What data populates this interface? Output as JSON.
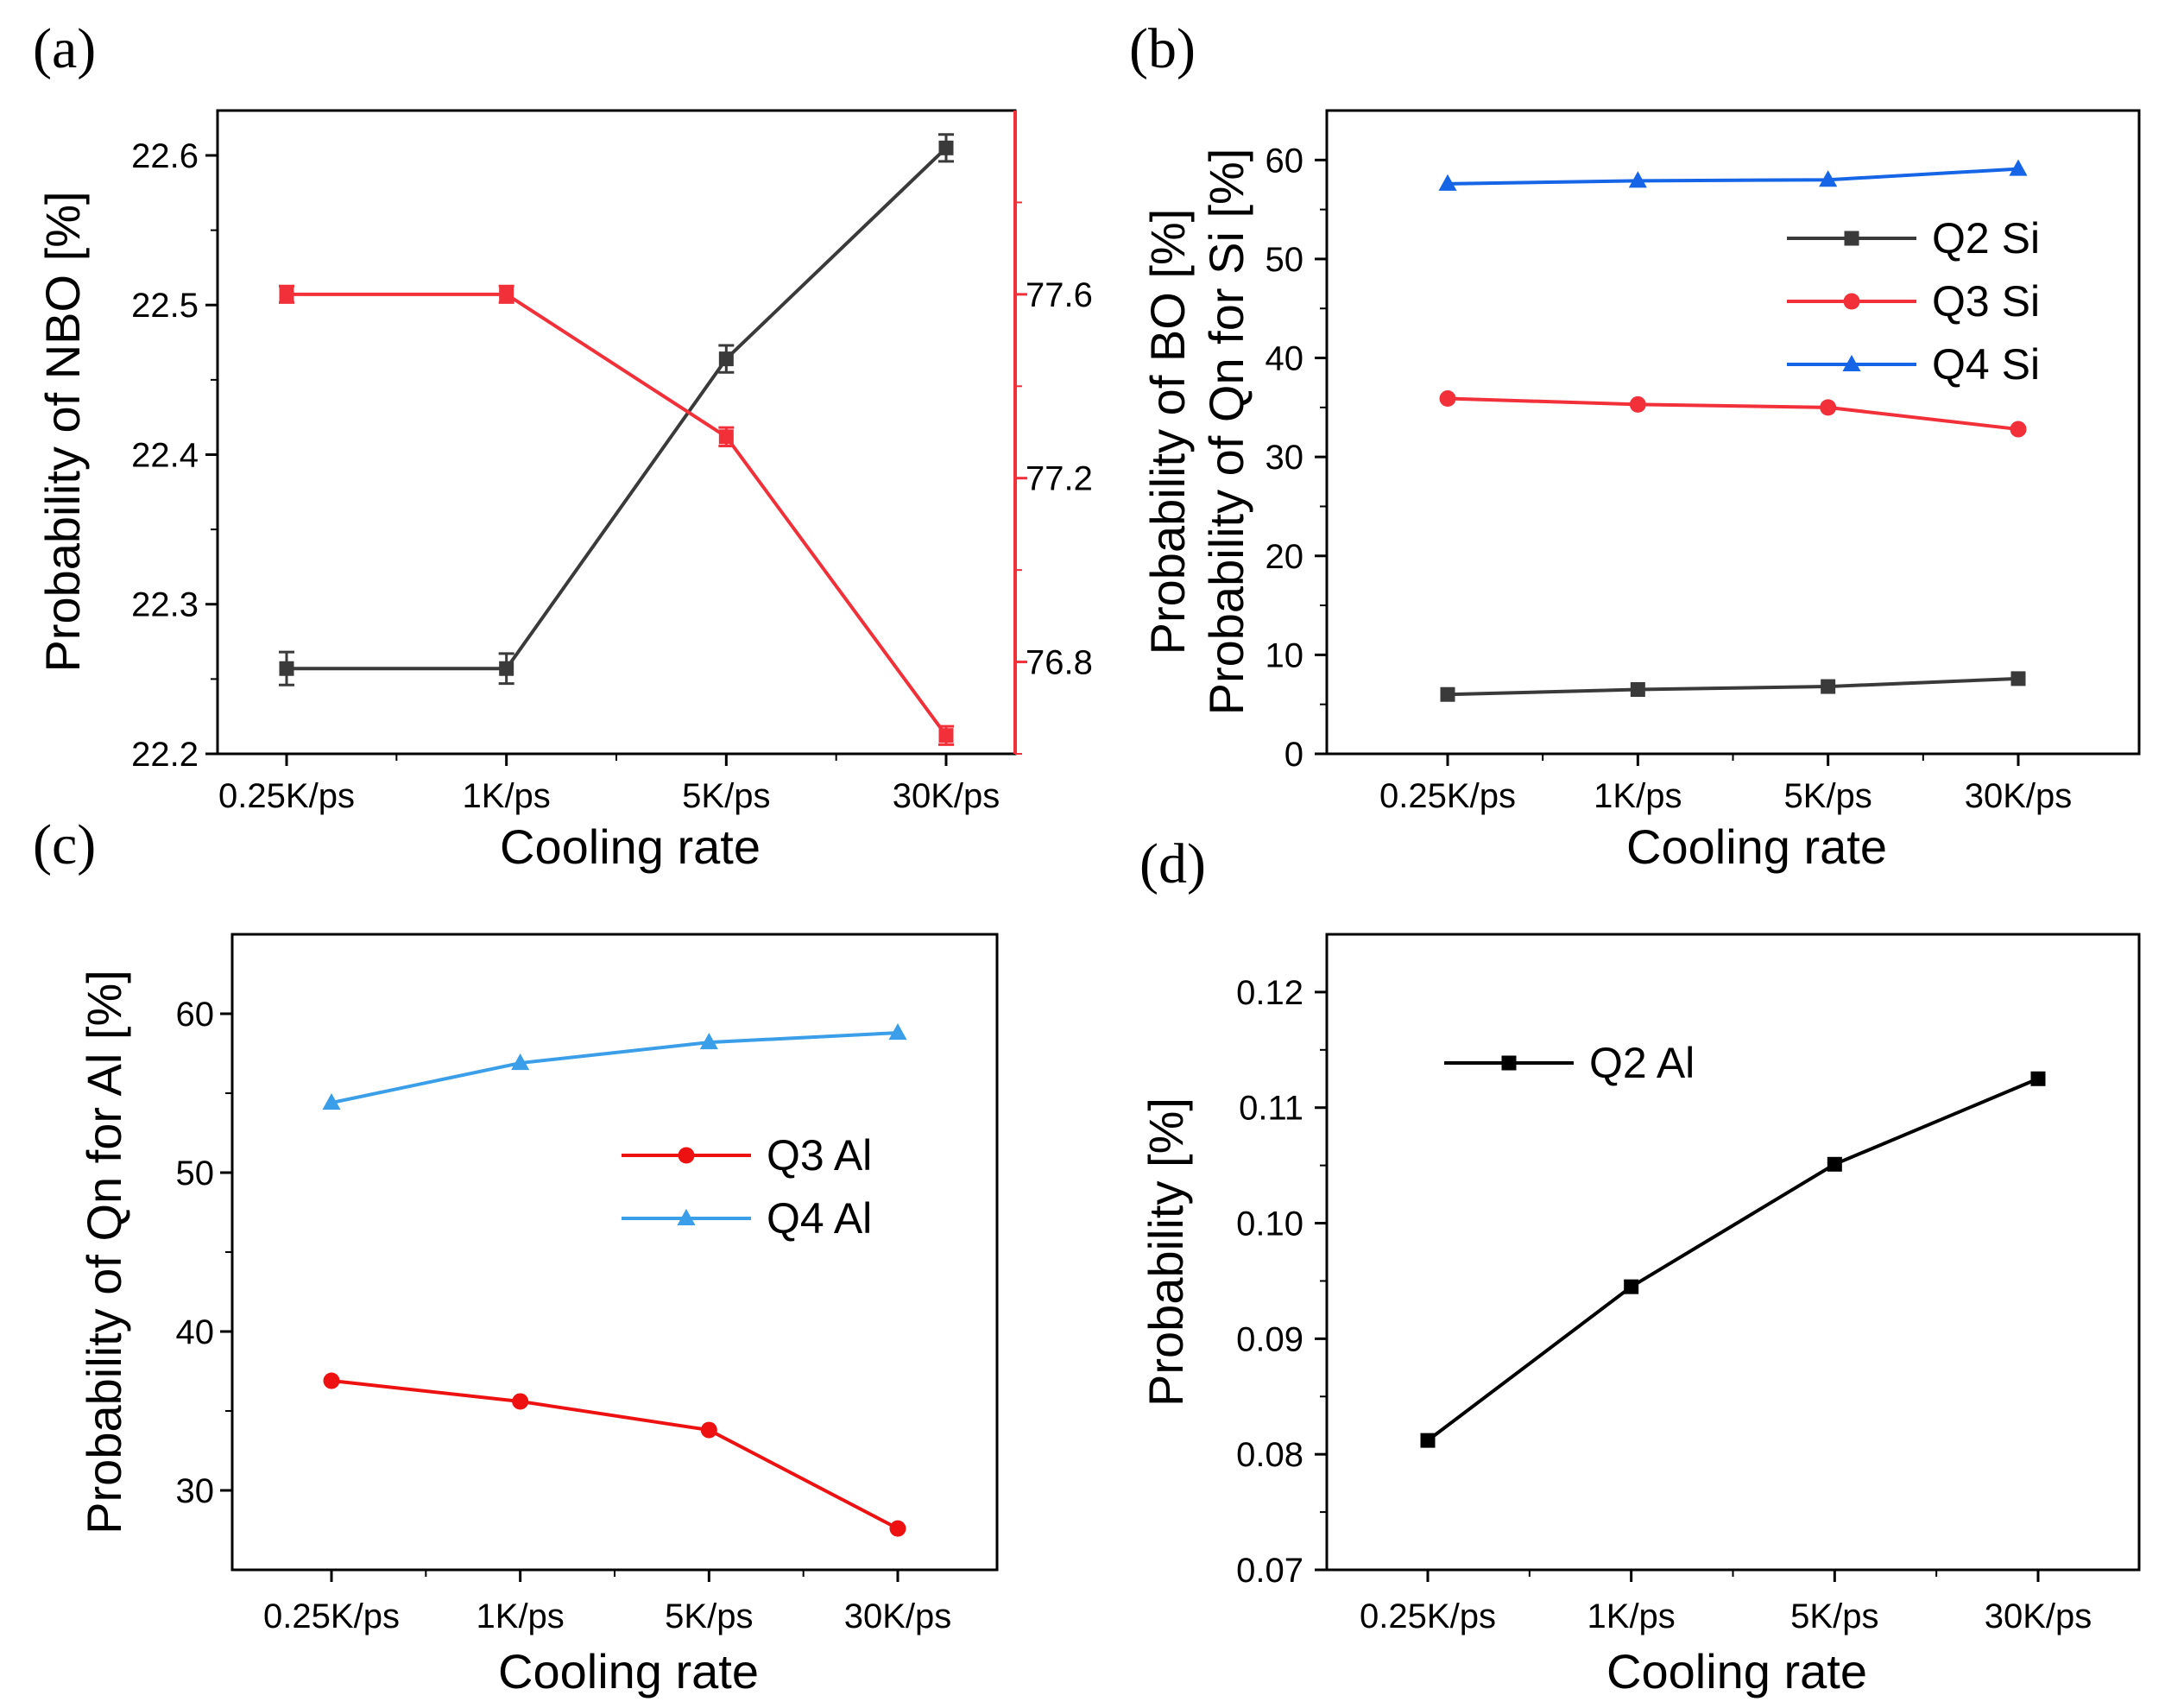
{
  "colors": {
    "black": "#000000",
    "dark_gray": "#3a3a3a",
    "red": "#f2303a",
    "red_solid": "#ee1111",
    "blue": "#1565e6",
    "light_blue": "#3a9ee8"
  },
  "chart_data": [
    {
      "type": "line",
      "panel": "(a)",
      "xlabel": "Cooling rate",
      "ylabel": "Probability of NBO [%]",
      "ylabel_right": "Probability of BO [%]",
      "categories": [
        "0.25K/ps",
        "1K/ps",
        "5K/ps",
        "30K/ps"
      ],
      "ylim": [
        22.2,
        22.63
      ],
      "yticks": [
        "22.2",
        "22.3",
        "22.4",
        "22.5",
        "22.6"
      ],
      "ylim_right": [
        76.6,
        78.0
      ],
      "yticks_right": [
        "76.8",
        "77.2",
        "77.6"
      ],
      "series": [
        {
          "name": "NBO",
          "axis": "left",
          "marker": "square",
          "color": "#3a3a3a",
          "values": [
            22.257,
            22.257,
            22.464,
            22.605
          ],
          "errors": [
            0.011,
            0.01,
            0.009,
            0.009
          ]
        },
        {
          "name": "BO",
          "axis": "right",
          "marker": "square",
          "color": "#f2303a",
          "values": [
            77.6,
            77.6,
            77.29,
            76.64
          ],
          "errors": [
            0.018,
            0.018,
            0.02,
            0.02
          ]
        }
      ]
    },
    {
      "type": "line",
      "panel": "(b)",
      "xlabel": "Cooling rate",
      "ylabel": "Probability of Qn for Si [%]",
      "categories": [
        "0.25K/ps",
        "1K/ps",
        "5K/ps",
        "30K/ps"
      ],
      "ylim": [
        0,
        65
      ],
      "yticks": [
        "0",
        "10",
        "20",
        "30",
        "40",
        "50",
        "60"
      ],
      "legend_position": "right",
      "series": [
        {
          "name": "Q2 Si",
          "marker": "square",
          "color": "#3a3a3a",
          "values": [
            6.0,
            6.5,
            6.8,
            7.6
          ]
        },
        {
          "name": "Q3 Si",
          "marker": "circle",
          "color": "#f2303a",
          "values": [
            35.9,
            35.3,
            35.0,
            32.8
          ]
        },
        {
          "name": "Q4 Si",
          "marker": "triangle",
          "color": "#1565e6",
          "values": [
            57.6,
            57.9,
            58.0,
            59.1
          ]
        }
      ]
    },
    {
      "type": "line",
      "panel": "(c)",
      "xlabel": "Cooling rate",
      "ylabel": "Probability of Qn for Al [%]",
      "categories": [
        "0.25K/ps",
        "1K/ps",
        "5K/ps",
        "30K/ps"
      ],
      "ylim": [
        25,
        65
      ],
      "yticks": [
        "30",
        "40",
        "50",
        "60"
      ],
      "legend_position": "center-right",
      "series": [
        {
          "name": "Q3 Al",
          "marker": "circle",
          "color": "#ee1111",
          "values": [
            36.9,
            35.6,
            33.8,
            27.6
          ]
        },
        {
          "name": "Q4 Al",
          "marker": "triangle",
          "color": "#3a9ee8",
          "values": [
            54.4,
            56.9,
            58.2,
            58.8
          ]
        }
      ]
    },
    {
      "type": "line",
      "panel": "(d)",
      "xlabel": "Cooling rate",
      "ylabel": "Probability [%]",
      "categories": [
        "0.25K/ps",
        "1K/ps",
        "5K/ps",
        "30K/ps"
      ],
      "ylim": [
        0.07,
        0.125
      ],
      "yticks": [
        "0.07",
        "0.08",
        "0.09",
        "0.10",
        "0.11",
        "0.12"
      ],
      "legend_position": "top-left",
      "series": [
        {
          "name": "Q2 Al",
          "marker": "square",
          "color": "#000000",
          "values": [
            0.0812,
            0.0945,
            0.1051,
            0.1125
          ]
        }
      ]
    }
  ]
}
